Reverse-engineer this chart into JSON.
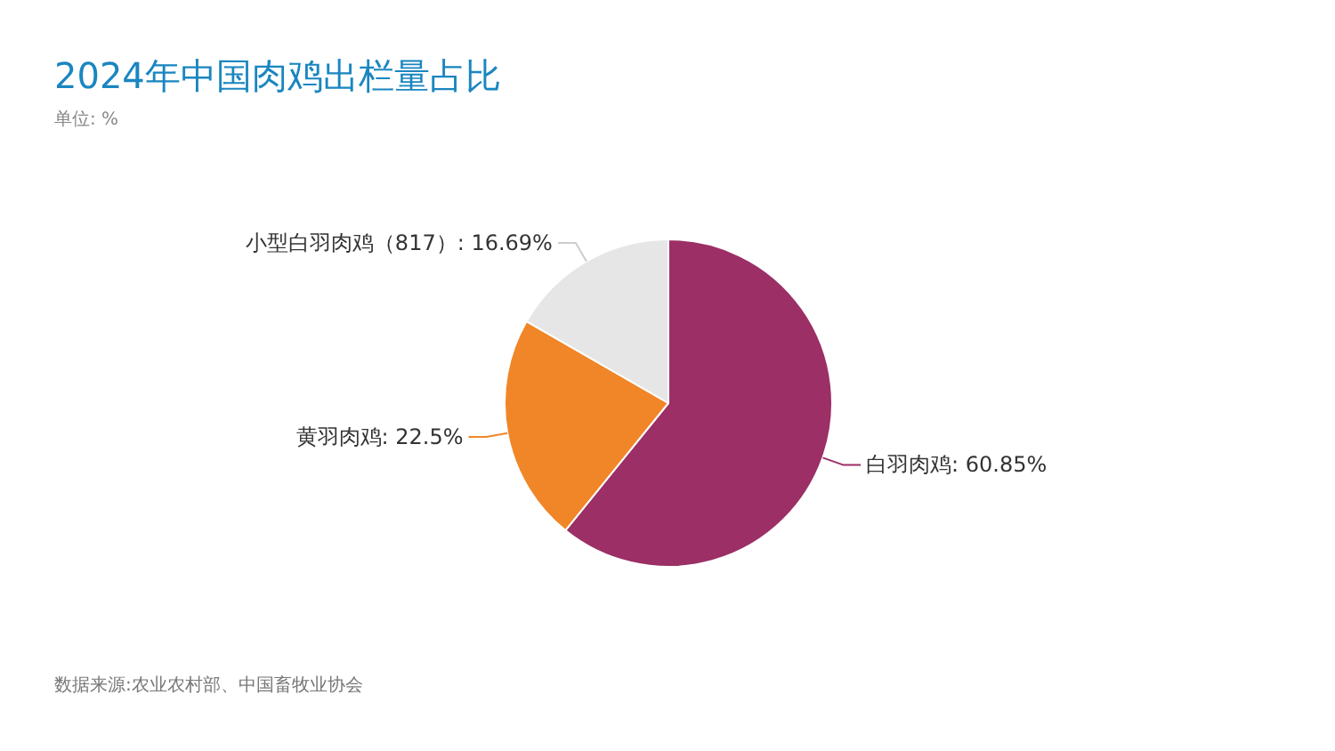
{
  "chart_data": {
    "type": "pie",
    "title": "2024年中国肉鸡出栏量占比",
    "subtitle": "单位: %",
    "categories": [
      "白羽肉鸡",
      "黄羽肉鸡",
      "小型白羽肉鸡（817）"
    ],
    "values": [
      60.85,
      22.5,
      16.69
    ],
    "colors": [
      "#9b2f66",
      "#f08628",
      "#e6e6e6"
    ],
    "value_labels": [
      "60.85%",
      "22.5%",
      "16.69%"
    ],
    "annotations": [
      "数据来源:农业农村部、中国畜牧业协会"
    ]
  }
}
